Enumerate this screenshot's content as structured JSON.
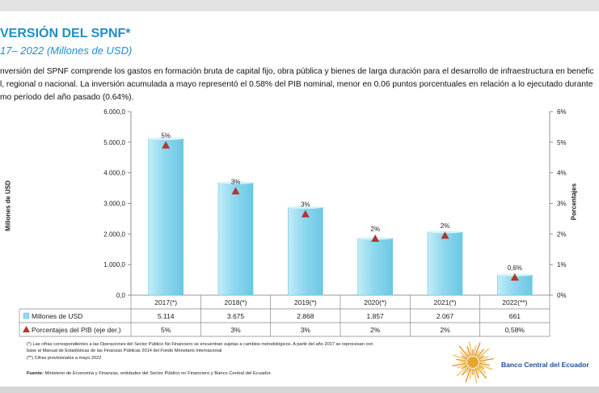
{
  "header": {
    "title": "VERSIÓN DEL SPNF*",
    "subtitle": "17– 2022 (Millones de USD)"
  },
  "description": [
    "nversión del SPNF comprende los gastos en formación bruta de capital fijo, obra pública y bienes de larga duración para el desarrollo de infraestructura en benefic",
    "l, regional o nacional. La inversión acumulada a mayo representó el 0.58% del PIB nominal, menor en 0.06 puntos porcentuales en relación a lo ejecutado durante",
    "mo período del año pasado (0.64%)."
  ],
  "chart_data": {
    "type": "bar",
    "categories": [
      "2017(*)",
      "2018(*)",
      "2019(*)",
      "2020(*)",
      "2021(*)",
      "2022(**)"
    ],
    "ylabel": "Millones de USD",
    "y2label": "Porcentajes",
    "ylim": [
      0,
      6000
    ],
    "y2lim": [
      0,
      6
    ],
    "y_ticks": [
      "0,0",
      "1.000,0",
      "2.000,0",
      "3.000,0",
      "4.000,0",
      "5.000,0",
      "6.000,0"
    ],
    "y2_ticks": [
      "0%",
      "1%",
      "2%",
      "3%",
      "4%",
      "5%",
      "6%"
    ],
    "series": [
      {
        "name": "Millones de USD",
        "kind": "bar",
        "values": [
          5114,
          3675,
          2868,
          1857,
          2067,
          661
        ],
        "table_labels": [
          "5.114",
          "3.675",
          "2.868",
          "1.857",
          "2.067",
          "661"
        ],
        "color": "#8fd8ef"
      },
      {
        "name": "Porcentajes del PIB (eje der.)",
        "kind": "marker",
        "values": [
          4.9,
          3.4,
          2.65,
          1.85,
          1.95,
          0.58
        ],
        "data_labels": [
          "5%",
          "3%",
          "3%",
          "2%",
          "2%",
          "0,6%"
        ],
        "table_labels": [
          "5%",
          "3%",
          "3%",
          "2%",
          "2%",
          "0,58%"
        ],
        "color": "#b5342f"
      }
    ],
    "grid": false,
    "legend": "data-table"
  },
  "footnotes": [
    "(*) Las cifras correspondientes a las Operaciones del Sector Público No Financiero se encuentran sujetas a cambios metodológicos. A partir del año 2017 se reprocesan con",
    "base al Manual de Estadísticas de las Finanzas Públicas 2014 del Fondo Monetario Internacional",
    "(**) Cifras provisionales a mayo 2022"
  ],
  "source": {
    "label": "Fuente:",
    "text": " Ministerio de Economía y Finanzas, entidades del Sector Público no Financiero y Banco Central del Ecuador."
  },
  "branding": {
    "name": "Banco Central del Ecuador",
    "logo_icon": "sun-seal-icon"
  }
}
